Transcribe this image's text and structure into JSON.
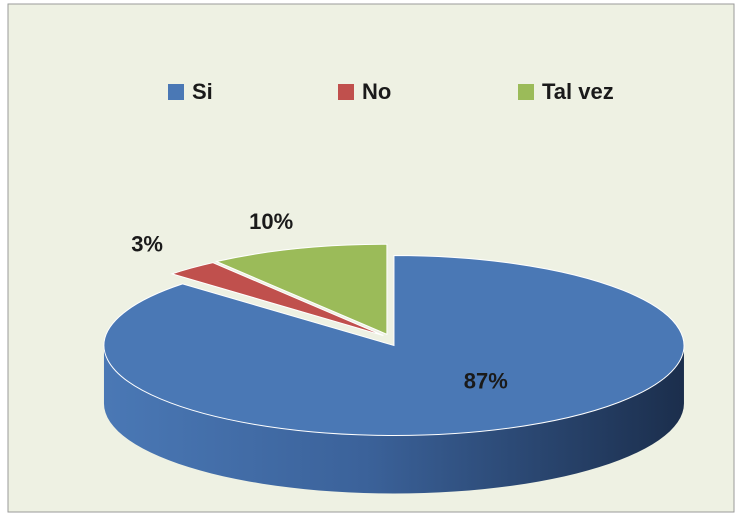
{
  "chart_data": {
    "type": "pie3d",
    "categories": [
      "Si",
      "No",
      "Tal vez"
    ],
    "values": [
      87,
      3,
      10
    ],
    "value_labels": [
      "87%",
      "3%",
      "10%"
    ],
    "colors": [
      "#4a78b5",
      "#c0504d",
      "#9bbb59"
    ],
    "legend": "top"
  }
}
